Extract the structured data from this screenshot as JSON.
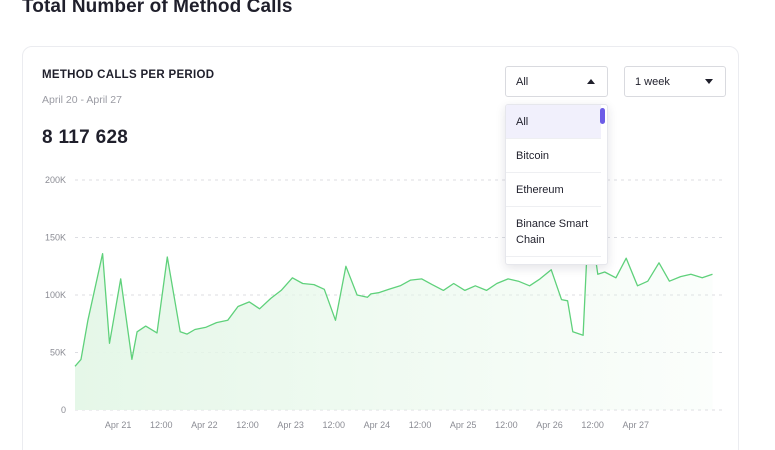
{
  "page": {
    "title": "Total Number of Method Calls"
  },
  "card": {
    "title": "METHOD CALLS PER PERIOD",
    "date_range": "April 20 - April 27",
    "total": "8 117 628"
  },
  "network_select": {
    "value": "All",
    "open": true,
    "options": [
      "All",
      "Bitcoin",
      "Ethereum",
      "Binance Smart Chain"
    ]
  },
  "period_select": {
    "value": "1 week"
  },
  "colors": {
    "line": "#5fd17b",
    "area": "#e5f7e8",
    "accent": "#6c5ce7",
    "grid": "#dcdde2"
  },
  "chart_data": {
    "type": "area",
    "y_ticks": [
      "0",
      "50K",
      "100K",
      "150K",
      "200K"
    ],
    "x_ticks": [
      "Apr 21",
      "12:00",
      "Apr 22",
      "12:00",
      "Apr 23",
      "12:00",
      "Apr 24",
      "12:00",
      "Apr 25",
      "12:00",
      "Apr 26",
      "12:00",
      "Apr 27"
    ],
    "ylim": [
      0,
      200000
    ],
    "xlim": [
      0,
      7.5
    ],
    "grid": true,
    "series": [
      {
        "x": [
          0,
          0.07,
          0.15,
          0.32,
          0.4,
          0.53,
          0.66,
          0.72,
          0.82,
          0.95,
          1.07,
          1.22,
          1.3,
          1.39,
          1.52,
          1.64,
          1.77,
          1.89,
          2.02,
          2.14,
          2.27,
          2.39,
          2.52,
          2.64,
          2.77,
          2.89,
          3.02,
          3.14,
          3.27,
          3.39,
          3.43,
          3.52,
          3.64,
          3.77,
          3.89,
          4.02,
          4.14,
          4.27,
          4.39,
          4.52,
          4.64,
          4.77,
          4.89,
          5.02,
          5.14,
          5.27,
          5.39,
          5.52,
          5.64,
          5.71,
          5.77,
          5.89,
          5.93,
          5.98,
          6.06,
          6.14,
          6.27,
          6.39,
          6.52,
          6.64,
          6.77,
          6.89,
          7.02,
          7.14,
          7.27,
          7.39
        ],
        "y": [
          38000,
          44000,
          78000,
          136000,
          58000,
          114000,
          44000,
          68000,
          73000,
          67000,
          133000,
          68000,
          66000,
          70000,
          72000,
          76000,
          78000,
          90000,
          94000,
          88000,
          97000,
          104000,
          115000,
          110000,
          109000,
          105000,
          78000,
          125000,
          100000,
          98000,
          101000,
          102000,
          105000,
          108000,
          113000,
          114000,
          109000,
          104000,
          110000,
          104000,
          108000,
          104000,
          110000,
          114000,
          112000,
          108000,
          114000,
          122000,
          96000,
          95000,
          68000,
          65000,
          130000,
          160000,
          118000,
          120000,
          115000,
          132000,
          108000,
          112000,
          128000,
          112000,
          116000,
          118000,
          115000,
          118000
        ]
      }
    ]
  }
}
